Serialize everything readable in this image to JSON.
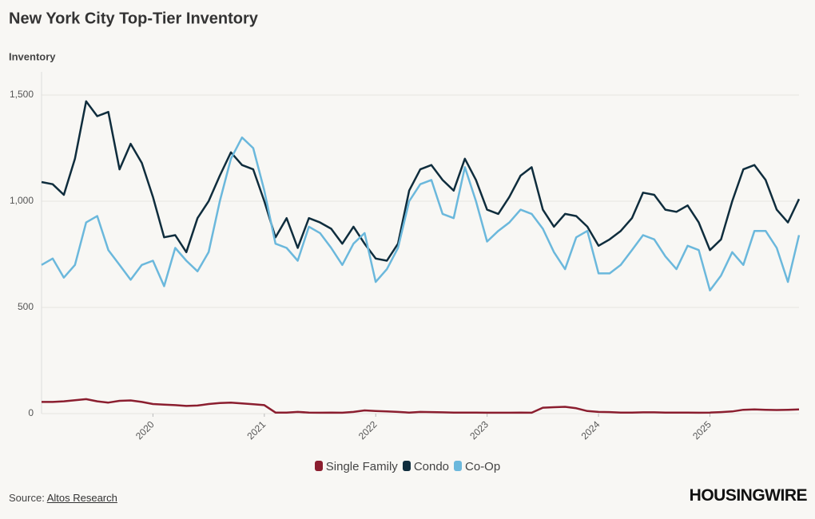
{
  "chart_data": {
    "type": "line",
    "title": "New York City Top-Tier Inventory",
    "y_label": "Inventory",
    "x": [
      2019.0,
      2019.1,
      2019.2,
      2019.3,
      2019.4,
      2019.5,
      2019.6,
      2019.7,
      2019.8,
      2019.9,
      2020.0,
      2020.1,
      2020.2,
      2020.3,
      2020.4,
      2020.5,
      2020.6,
      2020.7,
      2020.8,
      2020.9,
      2021.0,
      2021.1,
      2021.2,
      2021.3,
      2021.4,
      2021.5,
      2021.6,
      2021.7,
      2021.8,
      2021.9,
      2022.0,
      2022.1,
      2022.2,
      2022.3,
      2022.4,
      2022.5,
      2022.6,
      2022.7,
      2022.8,
      2022.9,
      2023.0,
      2023.1,
      2023.2,
      2023.3,
      2023.4,
      2023.5,
      2023.6,
      2023.7,
      2023.8,
      2023.9,
      2024.0,
      2024.1,
      2024.2,
      2024.3,
      2024.4,
      2024.5,
      2024.6,
      2024.7,
      2024.8,
      2024.9,
      2025.0,
      2025.1,
      2025.2,
      2025.3,
      2025.4,
      2025.5,
      2025.6,
      2025.7,
      2025.8
    ],
    "series": [
      {
        "name": "Single Family",
        "color": "#8b1e2f",
        "values": [
          55,
          55,
          58,
          63,
          68,
          58,
          52,
          60,
          62,
          55,
          45,
          42,
          40,
          36,
          38,
          45,
          50,
          52,
          48,
          44,
          40,
          5,
          5,
          8,
          5,
          4,
          5,
          4,
          8,
          15,
          12,
          10,
          8,
          5,
          8,
          7,
          6,
          5,
          5,
          5,
          4,
          4,
          4,
          5,
          4,
          28,
          30,
          32,
          25,
          12,
          8,
          7,
          5,
          5,
          6,
          6,
          5,
          5,
          5,
          4,
          5,
          7,
          10,
          18,
          20,
          18,
          17,
          18,
          20
        ]
      },
      {
        "name": "Condo",
        "color": "#0f2d3d",
        "values": [
          1090,
          1080,
          1030,
          1200,
          1470,
          1400,
          1420,
          1150,
          1270,
          1180,
          1020,
          830,
          840,
          760,
          920,
          1000,
          1120,
          1230,
          1170,
          1150,
          1000,
          830,
          920,
          780,
          920,
          900,
          870,
          800,
          880,
          800,
          730,
          720,
          800,
          1050,
          1150,
          1170,
          1100,
          1050,
          1200,
          1100,
          960,
          940,
          1020,
          1120,
          1160,
          960,
          880,
          940,
          930,
          880,
          790,
          820,
          860,
          920,
          1040,
          1030,
          960,
          950,
          980,
          900,
          770,
          820,
          1000,
          1150,
          1170,
          1100,
          960,
          900,
          1010
        ]
      },
      {
        "name": "Co-Op",
        "color": "#6bb8dc",
        "values": [
          700,
          730,
          640,
          700,
          900,
          930,
          770,
          700,
          630,
          700,
          720,
          600,
          780,
          720,
          670,
          760,
          1000,
          1200,
          1300,
          1250,
          1050,
          800,
          780,
          720,
          880,
          850,
          780,
          700,
          800,
          850,
          620,
          680,
          780,
          1000,
          1080,
          1100,
          940,
          920,
          1160,
          1000,
          810,
          860,
          900,
          960,
          940,
          870,
          760,
          680,
          830,
          860,
          660,
          660,
          700,
          770,
          840,
          820,
          740,
          680,
          790,
          770,
          580,
          650,
          760,
          700,
          860,
          860,
          780,
          620,
          840
        ]
      }
    ],
    "xlim": [
      2019.0,
      2025.8
    ],
    "xticks": [
      2020,
      2021,
      2022,
      2023,
      2024,
      2025
    ],
    "ylim": [
      0,
      1590
    ],
    "yticks": [
      0,
      500,
      {
        "value": 1000,
        "label": "1,000"
      },
      {
        "value": 1500,
        "label": "1,500"
      }
    ],
    "grid": true,
    "legend": "bottom",
    "source_label": "Source:",
    "source": "Altos Research",
    "logo": "HOUSINGWIRE"
  }
}
